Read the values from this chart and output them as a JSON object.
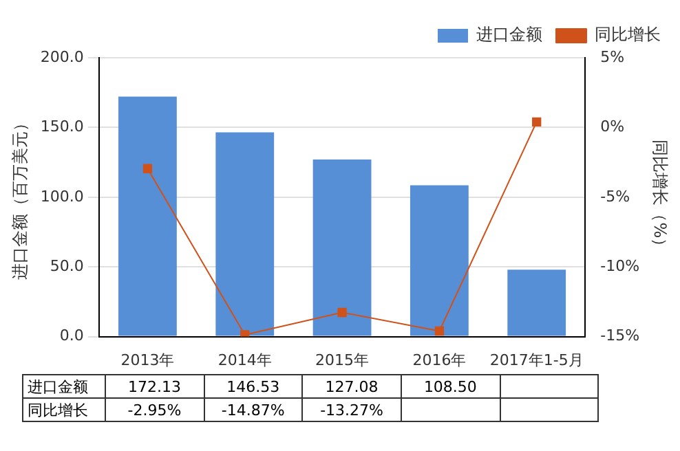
{
  "chart_data": {
    "type": "bar",
    "categories": [
      "2013年",
      "2014年",
      "2015年",
      "2016年",
      "2017年1-5月"
    ],
    "ylabel": "进口金额（百万美元）",
    "y2label": "同比增长（%）",
    "series": [
      {
        "name": "进口金额",
        "color": "#578fd6",
        "values": [
          172.13,
          146.53,
          127.08,
          108.5,
          48
        ],
        "value_labels": [
          "172.13",
          "146.53",
          "127.08",
          "108.50",
          null
        ]
      },
      {
        "name": "同比增长",
        "type": "line",
        "axis": "y2",
        "color": "#d0521b",
        "marker": "square",
        "values": [
          -2.95,
          -14.87,
          -13.27,
          -14.6,
          0.4
        ],
        "value_labels": [
          "-2.95%",
          "-14.87%",
          "-13.27%",
          null,
          null
        ]
      }
    ],
    "ylim": [
      0,
      200
    ],
    "yticks": [
      {
        "value": 0,
        "label": "0.0"
      },
      {
        "value": 50,
        "label": "50.0"
      },
      {
        "value": 100,
        "label": "100.0"
      },
      {
        "value": 150,
        "label": "150.0"
      },
      {
        "value": 200,
        "label": "200.0"
      }
    ],
    "y2lim": [
      -15,
      5
    ],
    "y2ticks": [
      {
        "value": -15,
        "label": "-15%"
      },
      {
        "value": -10,
        "label": "-10%"
      },
      {
        "value": -5,
        "label": "-5%"
      },
      {
        "value": 0,
        "label": "0%"
      },
      {
        "value": 5,
        "label": "5%"
      }
    ],
    "grid": "y",
    "legend": "top right"
  }
}
